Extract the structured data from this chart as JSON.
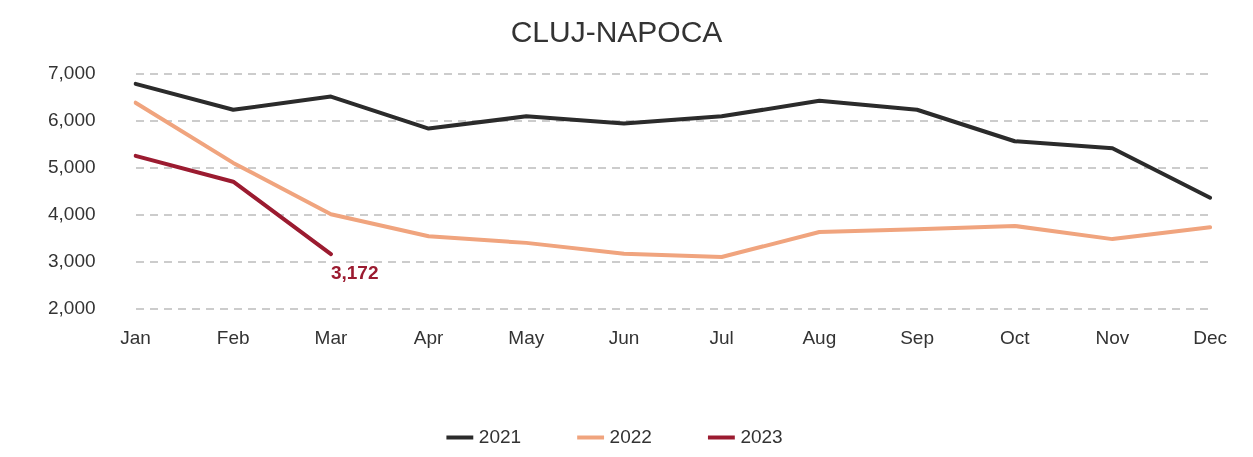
{
  "chart_data": {
    "type": "line",
    "title": "CLUJ-NAPOCA",
    "categories": [
      "Jan",
      "Feb",
      "Mar",
      "Apr",
      "May",
      "Jun",
      "Jul",
      "Aug",
      "Sep",
      "Oct",
      "Nov",
      "Dec"
    ],
    "series": [
      {
        "name": "2021",
        "color": "#2b2b2b",
        "values": [
          6790,
          6240,
          6520,
          5840,
          6100,
          5950,
          6100,
          6430,
          6240,
          5570,
          5420,
          4370
        ]
      },
      {
        "name": "2022",
        "color": "#f0a47e",
        "values": [
          6390,
          5110,
          4020,
          3550,
          3410,
          3180,
          3110,
          3640,
          3700,
          3770,
          3490,
          3740
        ]
      },
      {
        "name": "2023",
        "color": "#9b1b30",
        "values": [
          5260,
          4710,
          3172,
          null,
          null,
          null,
          null,
          null,
          null,
          null,
          null,
          null
        ],
        "value_labels": [
          null,
          null,
          "3,172",
          null,
          null,
          null,
          null,
          null,
          null,
          null,
          null,
          null
        ]
      }
    ],
    "ylim": [
      2000,
      7000
    ],
    "yticks": [
      {
        "value": 2000,
        "label": "2,000"
      },
      {
        "value": 3000,
        "label": "3,000"
      },
      {
        "value": 4000,
        "label": "4,000"
      },
      {
        "value": 5000,
        "label": "5,000"
      },
      {
        "value": 6000,
        "label": "6,000"
      },
      {
        "value": 7000,
        "label": "7,000"
      }
    ],
    "grid": "y",
    "legend": "bottom"
  }
}
